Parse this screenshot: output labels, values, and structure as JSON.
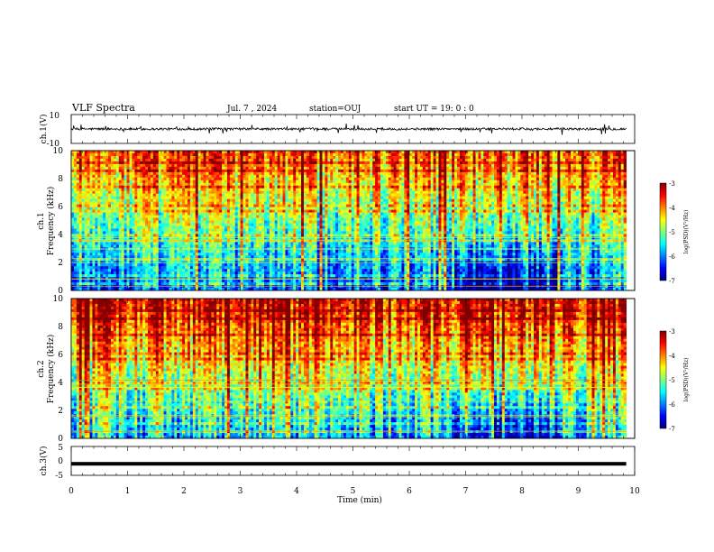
{
  "header": {
    "title": "VLF Spectra",
    "date": "Jul. 7 , 2024",
    "station": "station=OUJ",
    "start": "start UT = 19: 0 : 0"
  },
  "chart_data": [
    {
      "type": "line",
      "title": "",
      "ylabel": "ch.1(V)",
      "ylim": [
        -10,
        10
      ],
      "yticks": [
        "10",
        "-10"
      ],
      "xlim": [
        0,
        10
      ],
      "baseline": 0,
      "description_series": "waveform"
    },
    {
      "type": "heatmap",
      "ylabel_top": "ch.1",
      "ylabel": "Frequency (kHz)",
      "ylim": [
        0,
        10
      ],
      "yticks": [
        "0",
        "2",
        "4",
        "6",
        "8",
        "10"
      ],
      "xlim": [
        0,
        10
      ],
      "colorbar": {
        "label": "log(PSD)(V²/Hz)",
        "range": [
          -7,
          -3
        ],
        "ticks": [
          "-3",
          "-4",
          "-5",
          "-6",
          "-7"
        ]
      }
    },
    {
      "type": "heatmap",
      "ylabel_top": "ch.2",
      "ylabel": "Frequency (kHz)",
      "ylim": [
        0,
        10
      ],
      "yticks": [
        "0",
        "2",
        "4",
        "6",
        "8",
        "10"
      ],
      "xlim": [
        0,
        10
      ],
      "colorbar": {
        "label": "log(PSD)(V²/Hz)",
        "range": [
          -7,
          -3
        ],
        "ticks": [
          "-3",
          "-4",
          "-5",
          "-6",
          "-7"
        ]
      }
    },
    {
      "type": "line",
      "ylabel": "ch.3(V)",
      "ylim": [
        -5,
        5
      ],
      "yticks": [
        "5",
        "0",
        "-5"
      ],
      "xlim": [
        0,
        10
      ],
      "baseline": -1
    }
  ],
  "xaxis": {
    "label": "Time (min)",
    "ticks": [
      "0",
      "1",
      "2",
      "3",
      "4",
      "5",
      "6",
      "7",
      "8",
      "9",
      "10"
    ],
    "data_end": 9.85
  },
  "colors": {
    "jet_low": "#00007f",
    "jet_high": "#7f0000"
  }
}
